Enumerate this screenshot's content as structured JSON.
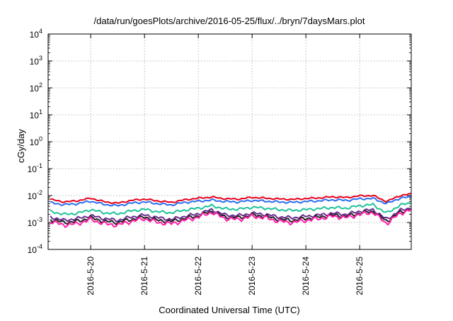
{
  "chart_data": {
    "type": "line",
    "title": "/data/run/goesPlots/archive/2016-05-25/flux/../bryn/7daysMars.plot",
    "xlabel": "Coordinated Universal Time (UTC)",
    "ylabel": "cGy/day",
    "y_scale": "log",
    "ylim_exponents": [
      -4,
      4
    ],
    "y_ticks": [
      {
        "base": "10",
        "exp": "-4"
      },
      {
        "base": "10",
        "exp": "-3"
      },
      {
        "base": "10",
        "exp": "-2"
      },
      {
        "base": "10",
        "exp": "-1"
      },
      {
        "base": "10",
        "exp": "0"
      },
      {
        "base": "10",
        "exp": "1"
      },
      {
        "base": "10",
        "exp": "2"
      },
      {
        "base": "10",
        "exp": "3"
      },
      {
        "base": "10",
        "exp": "4"
      }
    ],
    "xlim": [
      "2016-05-19T05:00",
      "2016-05-25T23:00"
    ],
    "x_ticks": [
      "2016-5-20",
      "2016-5-21",
      "2016-5-22",
      "2016-5-23",
      "2016-5-24",
      "2016-5-25"
    ],
    "x_tick_dates": [
      "2016-05-20",
      "2016-05-21",
      "2016-05-22",
      "2016-05-23",
      "2016-05-24",
      "2016-05-25"
    ],
    "grid": true,
    "x": [
      "2016-05-19T06:00",
      "2016-05-19T12:00",
      "2016-05-19T18:00",
      "2016-05-20T00:00",
      "2016-05-20T06:00",
      "2016-05-20T12:00",
      "2016-05-20T18:00",
      "2016-05-21T00:00",
      "2016-05-21T06:00",
      "2016-05-21T12:00",
      "2016-05-21T18:00",
      "2016-05-22T00:00",
      "2016-05-22T06:00",
      "2016-05-22T12:00",
      "2016-05-22T18:00",
      "2016-05-23T00:00",
      "2016-05-23T06:00",
      "2016-05-23T12:00",
      "2016-05-23T18:00",
      "2016-05-24T00:00",
      "2016-05-24T06:00",
      "2016-05-24T12:00",
      "2016-05-24T18:00",
      "2016-05-25T00:00",
      "2016-05-25T06:00",
      "2016-05-25T12:00",
      "2016-05-25T18:00",
      "2016-05-25T23:00"
    ],
    "series": [
      {
        "color": "#e8001c",
        "values": [
          0.0072,
          0.0058,
          0.0064,
          0.008,
          0.0059,
          0.0052,
          0.0066,
          0.0074,
          0.0063,
          0.0056,
          0.007,
          0.008,
          0.0088,
          0.0076,
          0.0074,
          0.0086,
          0.008,
          0.0075,
          0.0072,
          0.0078,
          0.0082,
          0.009,
          0.0084,
          0.0098,
          0.01,
          0.006,
          0.01,
          0.0115
        ]
      },
      {
        "color": "#2b6ff2",
        "values": [
          0.0054,
          0.0046,
          0.005,
          0.0062,
          0.0047,
          0.0042,
          0.0052,
          0.0058,
          0.005,
          0.0045,
          0.0056,
          0.0062,
          0.0068,
          0.006,
          0.0058,
          0.0066,
          0.0062,
          0.0058,
          0.0056,
          0.006,
          0.0064,
          0.007,
          0.0066,
          0.0076,
          0.0078,
          0.005,
          0.008,
          0.009
        ]
      },
      {
        "color": "#1fc39b",
        "values": [
          0.0026,
          0.002,
          0.0022,
          0.003,
          0.0023,
          0.0021,
          0.0027,
          0.0031,
          0.0025,
          0.0023,
          0.0029,
          0.0034,
          0.0042,
          0.0032,
          0.0031,
          0.0037,
          0.0034,
          0.003,
          0.0028,
          0.003,
          0.0033,
          0.0036,
          0.0034,
          0.0042,
          0.0046,
          0.0022,
          0.0044,
          0.0055
        ]
      },
      {
        "color": "#6a2c91",
        "values": [
          0.0016,
          0.0012,
          0.0014,
          0.0018,
          0.0014,
          0.0012,
          0.0016,
          0.0019,
          0.0015,
          0.0013,
          0.0017,
          0.0021,
          0.003,
          0.0019,
          0.0018,
          0.0022,
          0.002,
          0.0016,
          0.0015,
          0.0017,
          0.0019,
          0.0022,
          0.002,
          0.0026,
          0.003,
          0.0013,
          0.0028,
          0.0036
        ]
      },
      {
        "color": "#222222",
        "values": [
          0.0013,
          0.001,
          0.0011,
          0.0015,
          0.0011,
          0.001,
          0.0013,
          0.0016,
          0.0012,
          0.0011,
          0.0014,
          0.0018,
          0.0026,
          0.0016,
          0.0015,
          0.0019,
          0.0017,
          0.0013,
          0.0012,
          0.0014,
          0.0016,
          0.0019,
          0.0017,
          0.0022,
          0.0026,
          0.0011,
          0.0024,
          0.0032
        ]
      },
      {
        "color": "#ff1ea8",
        "values": [
          0.0011,
          0.0008,
          0.0009,
          0.0013,
          0.0009,
          0.0008,
          0.0011,
          0.0014,
          0.001,
          0.0009,
          0.0012,
          0.0016,
          0.0024,
          0.0014,
          0.0013,
          0.0017,
          0.0015,
          0.0011,
          0.001,
          0.0012,
          0.0014,
          0.0017,
          0.0015,
          0.002,
          0.0024,
          0.0009,
          0.0022,
          0.003
        ]
      }
    ]
  }
}
